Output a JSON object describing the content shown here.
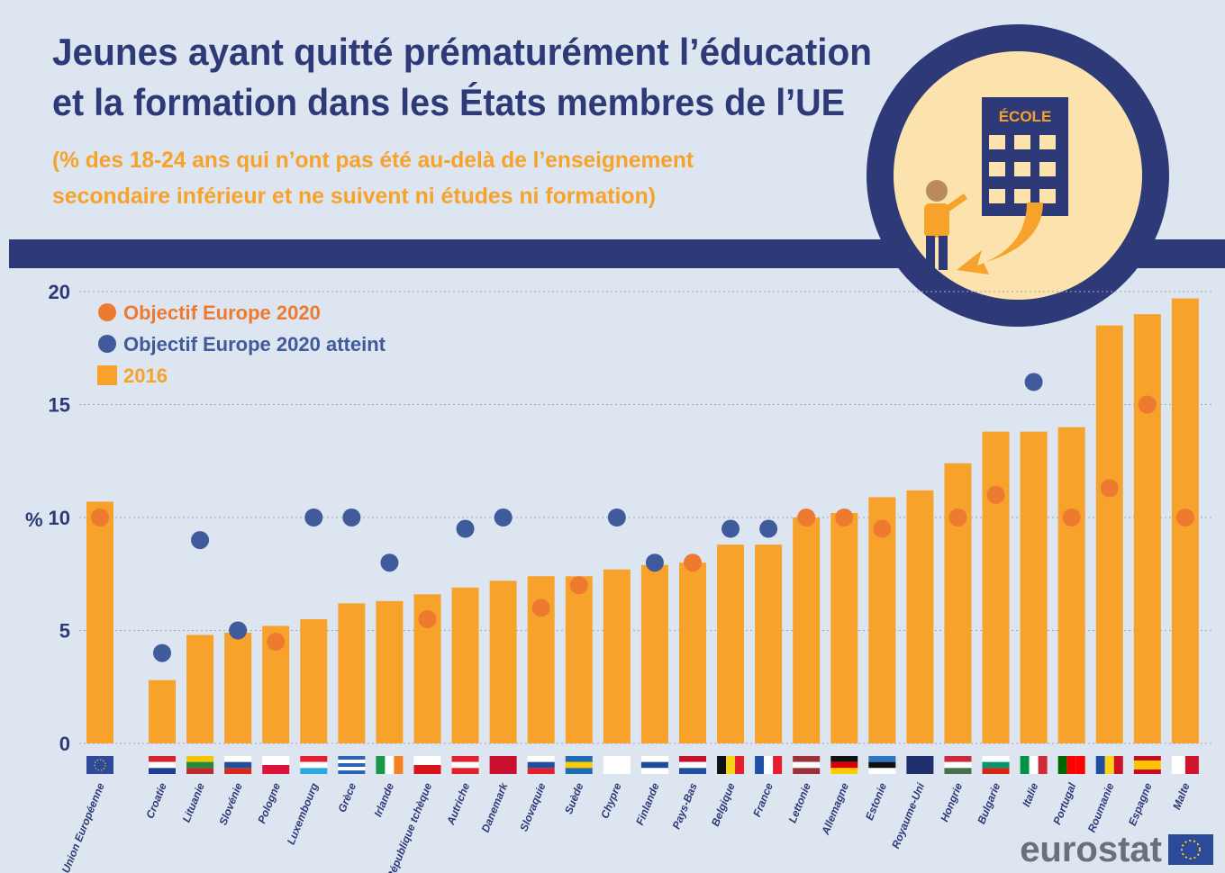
{
  "chart_data": {
    "type": "bar",
    "title": [
      "Jeunes ayant quitté prématurément l’éducation",
      "et la formation dans les États membres de l’UE"
    ],
    "subtitle": [
      "(% des 18-24 ans qui n’ont pas été au-delà de l’enseignement",
      "secondaire inférieur et ne suivent ni études ni formation)"
    ],
    "icon_label": "ÉCOLE",
    "source_logo": "eurostat",
    "y_label": "%",
    "categories": [
      "Union Européenne",
      "Croatie",
      "Lituanie",
      "Slovénie",
      "Pologne",
      "Luxembourg",
      "Grèce",
      "Irlande",
      "République tchèque",
      "Autriche",
      "Danemark",
      "Slovaquie",
      "Suède",
      "Chypre",
      "Finlande",
      "Pays-Bas",
      "Belgique",
      "France",
      "Lettonie",
      "Allemagne",
      "Estonie",
      "Royaume-Uni",
      "Hongrie",
      "Bulgarie",
      "Italie",
      "Portugal",
      "Roumanie",
      "Espagne",
      "Malte"
    ],
    "series": [
      {
        "name": "2016",
        "type": "bar",
        "color": "#f6a22b",
        "values": [
          10.7,
          2.8,
          4.8,
          4.9,
          5.2,
          5.5,
          6.2,
          6.3,
          6.6,
          6.9,
          7.2,
          7.4,
          7.4,
          7.7,
          7.9,
          8.0,
          8.8,
          8.8,
          10.0,
          10.2,
          10.9,
          11.2,
          12.4,
          13.8,
          13.8,
          14.0,
          18.5,
          19.0,
          19.7
        ]
      },
      {
        "name": "Objectif Europe 2020",
        "type": "scatter",
        "color": "#ee7a30",
        "values": [
          10,
          null,
          null,
          null,
          4.5,
          null,
          null,
          null,
          5.5,
          null,
          null,
          6,
          7,
          null,
          null,
          8,
          null,
          null,
          10,
          10,
          9.5,
          null,
          10,
          11,
          null,
          10,
          11.3,
          15,
          10
        ]
      },
      {
        "name": "Objectif Europe 2020 atteint",
        "type": "scatter",
        "color": "#3f5b9b",
        "values": [
          null,
          4,
          9,
          5,
          null,
          10,
          10,
          8,
          null,
          9.5,
          10,
          null,
          null,
          10,
          8,
          null,
          9.5,
          9.5,
          null,
          null,
          null,
          null,
          null,
          null,
          16,
          null,
          null,
          null,
          null
        ]
      }
    ],
    "ylim": [
      0,
      20
    ],
    "yticks": [
      0,
      5,
      10,
      15,
      20
    ],
    "grid": true
  }
}
